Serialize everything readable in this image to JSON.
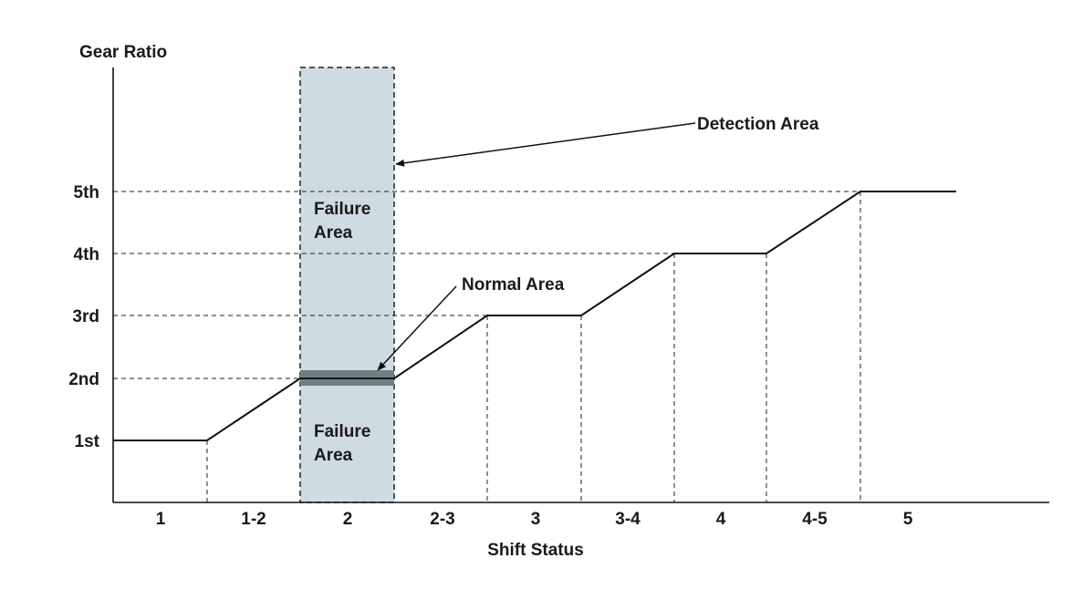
{
  "y_axis": {
    "title": "Gear Ratio",
    "ticks": [
      "1st",
      "2nd",
      "3rd",
      "4th",
      "5th"
    ]
  },
  "x_axis": {
    "title": "Shift Status",
    "categories": [
      "1",
      "1-2",
      "2",
      "2-3",
      "3",
      "3-4",
      "4",
      "4-5",
      "5"
    ]
  },
  "gear_profile": {
    "levels_by_category": [
      1,
      null,
      2,
      null,
      3,
      null,
      4,
      null,
      5
    ],
    "description_units": "gear level per shift status; null = transition ramp"
  },
  "annotations": {
    "detection_area": "Detection Area",
    "normal_area": "Normal Area",
    "failure_area_upper": [
      "Failure",
      "Area"
    ],
    "failure_area_lower": [
      "Failure",
      "Area"
    ]
  },
  "colors": {
    "detection_fill": "#cfdbe2",
    "normal_band": "#6f7f81",
    "line": "#111111"
  }
}
